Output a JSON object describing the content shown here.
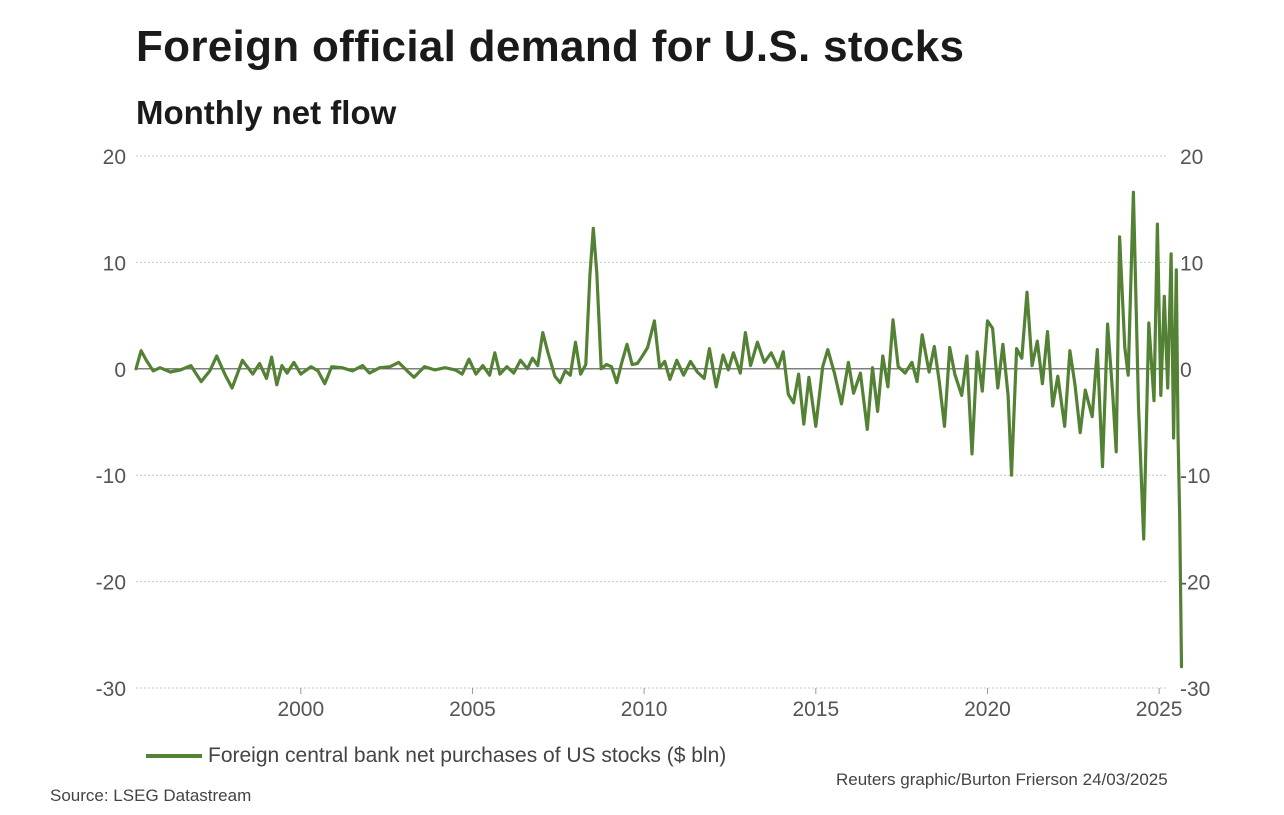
{
  "chart_data": {
    "type": "line",
    "title": "Foreign official demand for U.S. stocks",
    "subtitle": "Monthly net flow",
    "xlabel": "",
    "ylabel": "",
    "ylim": [
      -30,
      20
    ],
    "xlim": [
      1995.2,
      2025.2
    ],
    "yticks": [
      20,
      10,
      0,
      -10,
      -20,
      -30
    ],
    "xticks": [
      2000,
      2005,
      2010,
      2015,
      2020,
      2025
    ],
    "grid": true,
    "legend_position": "bottom-left",
    "line_color": "#548235",
    "series": [
      {
        "name": "Foreign central bank net purchases of US stocks ($ bln)",
        "points": [
          [
            1995.2,
            0.0
          ],
          [
            1995.35,
            1.7
          ],
          [
            1995.5,
            0.8
          ],
          [
            1995.7,
            -0.2
          ],
          [
            1995.9,
            0.1
          ],
          [
            1996.2,
            -0.3
          ],
          [
            1996.5,
            -0.1
          ],
          [
            1996.8,
            0.3
          ],
          [
            1997.1,
            -1.2
          ],
          [
            1997.35,
            -0.2
          ],
          [
            1997.55,
            1.2
          ],
          [
            1997.8,
            -0.6
          ],
          [
            1998.0,
            -1.8
          ],
          [
            1998.3,
            0.8
          ],
          [
            1998.6,
            -0.5
          ],
          [
            1998.8,
            0.5
          ],
          [
            1999.0,
            -0.9
          ],
          [
            1999.15,
            1.1
          ],
          [
            1999.3,
            -1.5
          ],
          [
            1999.45,
            0.3
          ],
          [
            1999.6,
            -0.4
          ],
          [
            1999.8,
            0.6
          ],
          [
            2000.0,
            -0.5
          ],
          [
            2000.3,
            0.2
          ],
          [
            2000.5,
            -0.2
          ],
          [
            2000.7,
            -1.4
          ],
          [
            2000.9,
            0.2
          ],
          [
            2001.2,
            0.1
          ],
          [
            2001.5,
            -0.2
          ],
          [
            2001.8,
            0.3
          ],
          [
            2002.0,
            -0.4
          ],
          [
            2002.3,
            0.1
          ],
          [
            2002.6,
            0.2
          ],
          [
            2002.85,
            0.6
          ],
          [
            2003.1,
            -0.2
          ],
          [
            2003.3,
            -0.8
          ],
          [
            2003.6,
            0.2
          ],
          [
            2003.9,
            -0.1
          ],
          [
            2004.2,
            0.1
          ],
          [
            2004.5,
            -0.1
          ],
          [
            2004.7,
            -0.5
          ],
          [
            2004.9,
            0.9
          ],
          [
            2005.1,
            -0.5
          ],
          [
            2005.3,
            0.3
          ],
          [
            2005.5,
            -0.6
          ],
          [
            2005.65,
            1.5
          ],
          [
            2005.8,
            -0.5
          ],
          [
            2006.0,
            0.2
          ],
          [
            2006.2,
            -0.4
          ],
          [
            2006.4,
            0.8
          ],
          [
            2006.6,
            0.0
          ],
          [
            2006.75,
            1.0
          ],
          [
            2006.9,
            0.3
          ],
          [
            2007.05,
            3.4
          ],
          [
            2007.2,
            1.5
          ],
          [
            2007.4,
            -0.7
          ],
          [
            2007.55,
            -1.3
          ],
          [
            2007.7,
            -0.2
          ],
          [
            2007.85,
            -0.6
          ],
          [
            2008.0,
            2.5
          ],
          [
            2008.15,
            -0.5
          ],
          [
            2008.3,
            0.4
          ],
          [
            2008.42,
            8.8
          ],
          [
            2008.52,
            13.2
          ],
          [
            2008.62,
            9.0
          ],
          [
            2008.75,
            0.0
          ],
          [
            2008.9,
            0.4
          ],
          [
            2009.05,
            0.2
          ],
          [
            2009.2,
            -1.3
          ],
          [
            2009.35,
            0.6
          ],
          [
            2009.5,
            2.3
          ],
          [
            2009.65,
            0.4
          ],
          [
            2009.8,
            0.5
          ],
          [
            2009.95,
            1.2
          ],
          [
            2010.1,
            2.0
          ],
          [
            2010.3,
            4.5
          ],
          [
            2010.45,
            0.1
          ],
          [
            2010.6,
            0.7
          ],
          [
            2010.75,
            -1.0
          ],
          [
            2010.95,
            0.8
          ],
          [
            2011.15,
            -0.6
          ],
          [
            2011.35,
            0.7
          ],
          [
            2011.55,
            -0.3
          ],
          [
            2011.75,
            -0.9
          ],
          [
            2011.9,
            1.9
          ],
          [
            2012.1,
            -1.7
          ],
          [
            2012.3,
            1.3
          ],
          [
            2012.45,
            -0.1
          ],
          [
            2012.6,
            1.5
          ],
          [
            2012.8,
            -0.4
          ],
          [
            2012.95,
            3.4
          ],
          [
            2013.1,
            0.3
          ],
          [
            2013.3,
            2.5
          ],
          [
            2013.5,
            0.6
          ],
          [
            2013.7,
            1.5
          ],
          [
            2013.9,
            0.1
          ],
          [
            2014.05,
            1.6
          ],
          [
            2014.2,
            -2.4
          ],
          [
            2014.35,
            -3.2
          ],
          [
            2014.5,
            -0.5
          ],
          [
            2014.65,
            -5.2
          ],
          [
            2014.8,
            -0.8
          ],
          [
            2015.0,
            -5.4
          ],
          [
            2015.2,
            0.2
          ],
          [
            2015.35,
            1.8
          ],
          [
            2015.55,
            -0.5
          ],
          [
            2015.75,
            -3.3
          ],
          [
            2015.95,
            0.6
          ],
          [
            2016.1,
            -2.3
          ],
          [
            2016.3,
            -0.4
          ],
          [
            2016.5,
            -5.7
          ],
          [
            2016.65,
            0.1
          ],
          [
            2016.8,
            -4.0
          ],
          [
            2016.95,
            1.2
          ],
          [
            2017.1,
            -1.7
          ],
          [
            2017.25,
            4.6
          ],
          [
            2017.4,
            0.2
          ],
          [
            2017.6,
            -0.4
          ],
          [
            2017.8,
            0.6
          ],
          [
            2017.95,
            -1.2
          ],
          [
            2018.1,
            3.2
          ],
          [
            2018.3,
            -0.3
          ],
          [
            2018.45,
            2.1
          ],
          [
            2018.6,
            -1.3
          ],
          [
            2018.75,
            -5.4
          ],
          [
            2018.9,
            2.0
          ],
          [
            2019.05,
            -0.5
          ],
          [
            2019.25,
            -2.5
          ],
          [
            2019.4,
            1.2
          ],
          [
            2019.55,
            -8.0
          ],
          [
            2019.7,
            1.6
          ],
          [
            2019.85,
            -2.1
          ],
          [
            2020.0,
            4.5
          ],
          [
            2020.15,
            3.8
          ],
          [
            2020.3,
            -1.8
          ],
          [
            2020.45,
            2.3
          ],
          [
            2020.6,
            -2.5
          ],
          [
            2020.7,
            -10.0
          ],
          [
            2020.85,
            1.9
          ],
          [
            2021.0,
            1.0
          ],
          [
            2021.15,
            7.2
          ],
          [
            2021.3,
            0.3
          ],
          [
            2021.45,
            2.6
          ],
          [
            2021.6,
            -1.4
          ],
          [
            2021.75,
            3.5
          ],
          [
            2021.9,
            -3.5
          ],
          [
            2022.05,
            -0.7
          ],
          [
            2022.25,
            -5.4
          ],
          [
            2022.4,
            1.7
          ],
          [
            2022.55,
            -1.5
          ],
          [
            2022.7,
            -6.0
          ],
          [
            2022.85,
            -2.0
          ],
          [
            2023.05,
            -4.5
          ],
          [
            2023.2,
            1.8
          ],
          [
            2023.35,
            -9.2
          ],
          [
            2023.5,
            4.2
          ],
          [
            2023.65,
            -2.5
          ],
          [
            2023.75,
            -7.8
          ],
          [
            2023.85,
            12.4
          ],
          [
            2024.0,
            2.0
          ],
          [
            2024.1,
            -0.6
          ],
          [
            2024.25,
            16.6
          ],
          [
            2024.4,
            -3.5
          ],
          [
            2024.55,
            -16.0
          ],
          [
            2024.7,
            4.3
          ],
          [
            2024.85,
            -3.0
          ],
          [
            2024.95,
            13.6
          ],
          [
            2025.05,
            -2.5
          ],
          [
            2025.15,
            6.8
          ],
          [
            2025.25,
            -1.8
          ],
          [
            2025.35,
            10.8
          ],
          [
            2025.42,
            -6.5
          ],
          [
            2025.5,
            9.3
          ],
          [
            2025.55,
            -6.0
          ],
          [
            2025.6,
            -14.0
          ],
          [
            2025.65,
            -28.0
          ]
        ]
      }
    ],
    "source": "Source: LSEG Datastream",
    "credit": "Reuters graphic/Burton Frierson 24/03/2025"
  }
}
